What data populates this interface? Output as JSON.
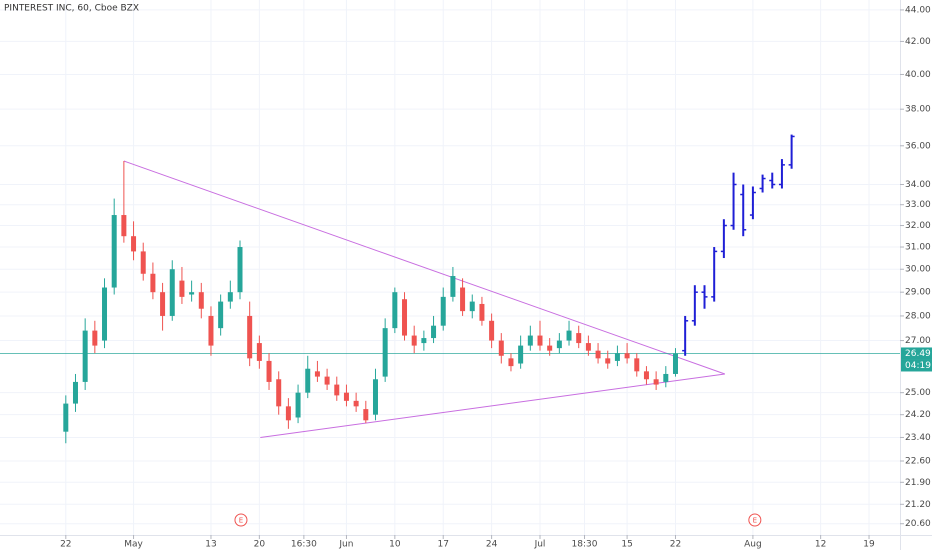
{
  "chart_data": {
    "type": "candlestick",
    "title": "PINTEREST INC, 60, Cboe BZX",
    "log_scale": true,
    "grid": true,
    "xlim": [
      -6.8,
      86.2
    ],
    "ylim": [
      20.26,
      44.65
    ],
    "xticks": [
      {
        "value": 0,
        "label": "22"
      },
      {
        "value": 7,
        "label": "May"
      },
      {
        "value": 15,
        "label": "13"
      },
      {
        "value": 20,
        "label": "20"
      },
      {
        "value": 24.6,
        "label": "16:30"
      },
      {
        "value": 29,
        "label": "Jun"
      },
      {
        "value": 34,
        "label": "10"
      },
      {
        "value": 39,
        "label": "17"
      },
      {
        "value": 44,
        "label": "24"
      },
      {
        "value": 49,
        "label": "Jul"
      },
      {
        "value": 53.6,
        "label": "18:30"
      },
      {
        "value": 58,
        "label": "15"
      },
      {
        "value": 63,
        "label": "22"
      },
      {
        "value": 71,
        "label": "Aug"
      },
      {
        "value": 78,
        "label": "12"
      },
      {
        "value": 83,
        "label": "19"
      }
    ],
    "yticks": [
      {
        "value": 44,
        "label": "44.00"
      },
      {
        "value": 42,
        "label": "42.00"
      },
      {
        "value": 40,
        "label": "40.00"
      },
      {
        "value": 38,
        "label": "38.00"
      },
      {
        "value": 36,
        "label": "36.00"
      },
      {
        "value": 34,
        "label": "34.00"
      },
      {
        "value": 33,
        "label": "33.00"
      },
      {
        "value": 32,
        "label": "32.00"
      },
      {
        "value": 31,
        "label": "31.00"
      },
      {
        "value": 30,
        "label": "30.00"
      },
      {
        "value": 29,
        "label": "29.00"
      },
      {
        "value": 28,
        "label": "28.00"
      },
      {
        "value": 27,
        "label": "27.00"
      },
      {
        "value": 25,
        "label": "25.00"
      },
      {
        "value": 24.2,
        "label": "24.20"
      },
      {
        "value": 23.4,
        "label": "23.40"
      },
      {
        "value": 22.6,
        "label": "22.60"
      },
      {
        "value": 21.9,
        "label": "21.90"
      },
      {
        "value": 21.2,
        "label": "21.20"
      },
      {
        "value": 20.6,
        "label": "20.60"
      }
    ],
    "last_price": 26.49,
    "countdown": "04:19",
    "price_line_color": "#26a69a",
    "candles": {
      "color_up": "#26a69a",
      "color_down": "#ef5350",
      "x": [
        0,
        1,
        2,
        3,
        4,
        5,
        6,
        7,
        8,
        9,
        10,
        11,
        12,
        13,
        14,
        15,
        16,
        17,
        18,
        19,
        20,
        21,
        22,
        23,
        24,
        25,
        26,
        27,
        28,
        29,
        30,
        31,
        32,
        33,
        34,
        35,
        36,
        37,
        38,
        39,
        40,
        41,
        42,
        43,
        44,
        45,
        46,
        47,
        48,
        49,
        50,
        51,
        52,
        53,
        54,
        55,
        56,
        57,
        58,
        59,
        60,
        61,
        62,
        63
      ],
      "open": [
        23.6,
        24.6,
        25.4,
        27.4,
        27.0,
        29.2,
        32.5,
        31.5,
        30.8,
        29.8,
        29.0,
        28.0,
        29.5,
        28.9,
        29.0,
        28.0,
        27.5,
        28.6,
        29.0,
        28.0,
        26.9,
        26.2,
        25.5,
        24.5,
        24.1,
        25.0,
        25.8,
        25.6,
        25.3,
        25.0,
        24.7,
        24.4,
        24.2,
        25.6,
        27.5,
        28.7,
        27.2,
        26.9,
        27.1,
        27.6,
        28.8,
        29.2,
        28.2,
        28.5,
        27.8,
        27.0,
        26.3,
        26.1,
        26.8,
        27.2,
        26.8,
        26.7,
        27.0,
        27.3,
        26.9,
        26.6,
        26.3,
        26.2,
        26.5,
        26.3,
        25.8,
        25.5,
        25.4,
        25.7
      ],
      "high": [
        24.9,
        25.7,
        27.9,
        27.8,
        29.6,
        33.3,
        35.2,
        32.2,
        31.2,
        30.3,
        29.4,
        30.4,
        30.1,
        29.5,
        29.4,
        28.4,
        28.9,
        29.5,
        31.3,
        28.6,
        27.2,
        26.5,
        25.8,
        24.8,
        25.3,
        26.4,
        26.2,
        25.9,
        25.6,
        25.3,
        25.0,
        24.7,
        25.9,
        27.9,
        29.2,
        29.0,
        27.6,
        27.4,
        28.0,
        29.2,
        30.1,
        29.6,
        28.9,
        28.8,
        28.1,
        27.3,
        26.5,
        27.2,
        27.6,
        27.8,
        27.1,
        27.3,
        27.8,
        27.6,
        27.2,
        26.9,
        26.6,
        26.8,
        26.9,
        26.5,
        26.0,
        25.8,
        26.0,
        26.7
      ],
      "low": [
        23.2,
        24.3,
        25.1,
        26.5,
        26.7,
        28.9,
        31.2,
        30.4,
        29.5,
        28.7,
        27.4,
        27.8,
        28.5,
        28.6,
        27.9,
        26.4,
        27.2,
        28.3,
        28.7,
        26.0,
        25.9,
        25.1,
        24.2,
        23.7,
        23.9,
        24.8,
        25.4,
        25.1,
        24.7,
        24.5,
        24.3,
        23.9,
        24.0,
        25.4,
        27.3,
        27.0,
        26.5,
        26.6,
        26.9,
        27.4,
        28.6,
        28.0,
        27.9,
        27.6,
        26.7,
        26.1,
        25.8,
        25.9,
        26.6,
        26.6,
        26.4,
        26.5,
        26.8,
        26.7,
        26.4,
        26.1,
        25.9,
        26.0,
        26.1,
        25.6,
        25.3,
        25.1,
        25.2,
        25.6
      ],
      "close": [
        24.6,
        25.4,
        27.4,
        26.8,
        29.2,
        32.5,
        31.5,
        30.8,
        29.8,
        29.0,
        28.0,
        30.0,
        28.8,
        29.0,
        28.3,
        26.8,
        28.6,
        29.0,
        31.0,
        26.3,
        26.2,
        25.4,
        24.5,
        24.0,
        25.0,
        25.9,
        25.6,
        25.3,
        24.9,
        24.7,
        24.5,
        24.0,
        25.5,
        27.5,
        29.0,
        27.2,
        26.8,
        27.1,
        27.6,
        28.8,
        29.7,
        28.2,
        28.6,
        27.8,
        27.0,
        26.4,
        26.0,
        26.8,
        27.2,
        26.8,
        26.6,
        27.0,
        27.4,
        26.9,
        26.6,
        26.3,
        26.1,
        26.5,
        26.3,
        25.8,
        25.5,
        25.3,
        25.7,
        26.49
      ]
    },
    "projection": {
      "color": "#1f1fd6",
      "x": [
        64,
        65,
        66,
        67,
        68,
        69,
        70,
        71,
        72,
        73,
        74,
        75
      ],
      "open": [
        26.6,
        27.8,
        29.0,
        28.8,
        30.8,
        32.0,
        33.5,
        32.5,
        33.8,
        34.2,
        34.0,
        35.0
      ],
      "high": [
        28.0,
        29.3,
        29.3,
        31.0,
        32.3,
        34.6,
        34.0,
        33.9,
        34.5,
        34.6,
        35.3,
        36.6
      ],
      "low": [
        26.4,
        27.6,
        28.3,
        28.6,
        30.5,
        31.8,
        31.5,
        32.3,
        33.6,
        33.8,
        33.8,
        34.8
      ],
      "close": [
        27.8,
        29.0,
        28.8,
        30.8,
        32.0,
        34.0,
        31.8,
        33.6,
        34.3,
        34.0,
        35.0,
        36.5
      ]
    },
    "trendlines": {
      "color": "#c86ee0",
      "lines": [
        {
          "x": [
            6,
            68.1
          ],
          "y": [
            35.2,
            25.7
          ]
        },
        {
          "x": [
            20.1,
            68.1
          ],
          "y": [
            23.4,
            25.7
          ]
        }
      ]
    },
    "events": [
      {
        "x": 18.1,
        "label": "E"
      },
      {
        "x": 71.2,
        "label": "E"
      }
    ]
  }
}
